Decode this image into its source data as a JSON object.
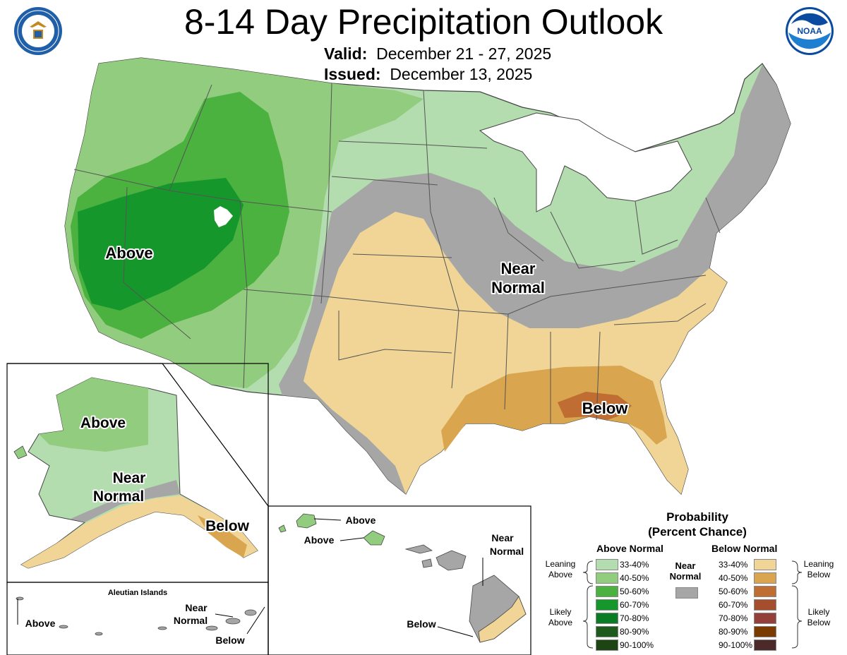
{
  "title": "8-14 Day Precipitation Outlook",
  "valid_label": "Valid:",
  "valid_value": "December 21 - 27, 2025",
  "issued_label": "Issued:",
  "issued_value": "December 13, 2025",
  "logos": {
    "left": "department-of-commerce-seal",
    "left_ring_text": "DEPARTMENT OF COMMERCE · UNITED STATES OF AMERICA",
    "right": "noaa-logo",
    "right_text": "NOAA"
  },
  "conus_labels": {
    "above": "Above",
    "near1": "Near",
    "near2": "Normal",
    "below": "Below"
  },
  "alaska_labels": {
    "above": "Above",
    "near1": "Near",
    "near2": "Normal",
    "below": "Below"
  },
  "aleutian": {
    "title": "Aleutian Islands",
    "above": "Above",
    "near1": "Near",
    "near2": "Normal",
    "below": "Below"
  },
  "hawaii_labels": {
    "above1": "Above",
    "above2": "Above",
    "near1": "Near",
    "near2": "Normal",
    "below": "Below"
  },
  "legend": {
    "title1": "Probability",
    "title2": "(Percent Chance)",
    "above_head": "Above Normal",
    "below_head": "Below Normal",
    "near1": "Near",
    "near2": "Normal",
    "leaning_above": [
      "Leaning",
      "Above"
    ],
    "likely_above": [
      "Likely",
      "Above"
    ],
    "leaning_below": [
      "Leaning",
      "Below"
    ],
    "likely_below": [
      "Likely",
      "Below"
    ],
    "ranges": [
      "33-40%",
      "40-50%",
      "50-60%",
      "60-70%",
      "70-80%",
      "80-90%",
      "90-100%"
    ],
    "above_colors": [
      "#b3dcaf",
      "#92cc7e",
      "#4bb13f",
      "#16972c",
      "#0a7d24",
      "#1e5a1d",
      "#1d4514"
    ],
    "below_colors": [
      "#f0d596",
      "#d9a54e",
      "#bf6d32",
      "#a54e2d",
      "#94403a",
      "#7a3b00",
      "#4c2a2a"
    ],
    "near_color": "#a6a6a6"
  }
}
